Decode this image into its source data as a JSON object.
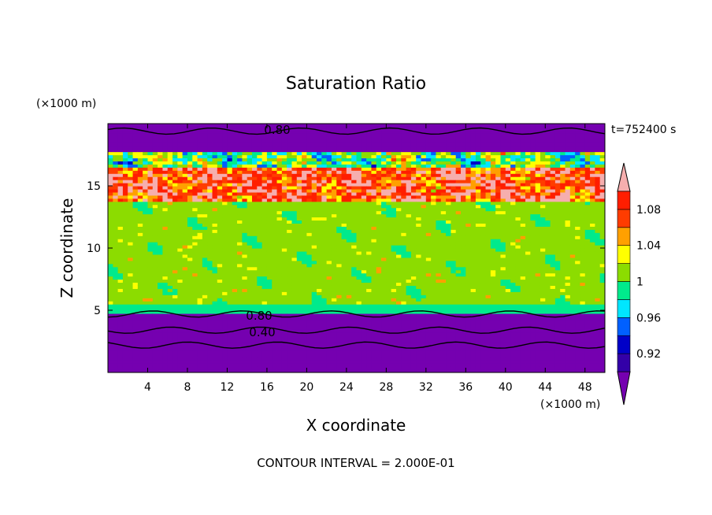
{
  "chart_data": {
    "type": "heatmap",
    "title": "Saturation Ratio",
    "xlabel": "X coordinate",
    "ylabel": "Z coordinate",
    "x_unit": "(×1000 m)",
    "y_unit": "(×1000 m)",
    "time_label": "t=752400 s",
    "footer": "CONTOUR INTERVAL = 2.000E-01",
    "xlim": [
      0,
      50
    ],
    "ylim": [
      0,
      20
    ],
    "x_ticks": [
      4,
      8,
      12,
      16,
      20,
      24,
      28,
      32,
      36,
      40,
      44,
      48
    ],
    "y_ticks": [
      5,
      10,
      15
    ],
    "colorbar": {
      "boundaries": [
        0.9,
        0.92,
        0.94,
        0.96,
        0.98,
        1.0,
        1.02,
        1.04,
        1.06,
        1.08,
        1.1
      ],
      "labels": [
        "0.92",
        "0.96",
        "1",
        "1.04",
        "1.08"
      ],
      "label_values": [
        0.92,
        0.96,
        1.0,
        1.04,
        1.08
      ],
      "colors": [
        "#7500b0",
        "#3300a8",
        "#0000c8",
        "#0060ff",
        "#00e6ff",
        "#00ea8c",
        "#8cdc00",
        "#ffff00",
        "#ffa000",
        "#ff3c00",
        "#ff1e00",
        "#f6aeae"
      ],
      "extend": "both"
    },
    "contour_labels": [
      {
        "text": "0.80",
        "x": 16.5,
        "z": 19.4
      },
      {
        "text": "0.80",
        "x": 14.8,
        "z": 4.7
      },
      {
        "text": "0.40",
        "x": 15.5,
        "z": 3.4
      }
    ],
    "profile": [
      {
        "z_max": 3.5,
        "value": 0.55
      },
      {
        "z_max": 4.7,
        "value": 0.85
      },
      {
        "z_max": 5.5,
        "value": 0.99
      },
      {
        "z_max": 13.8,
        "value": 1.0
      },
      {
        "z_max": 16.5,
        "value": 1.08
      },
      {
        "z_max": 17.8,
        "value": 1.0
      },
      {
        "z_max": 20.0,
        "value": 0.75
      }
    ]
  }
}
